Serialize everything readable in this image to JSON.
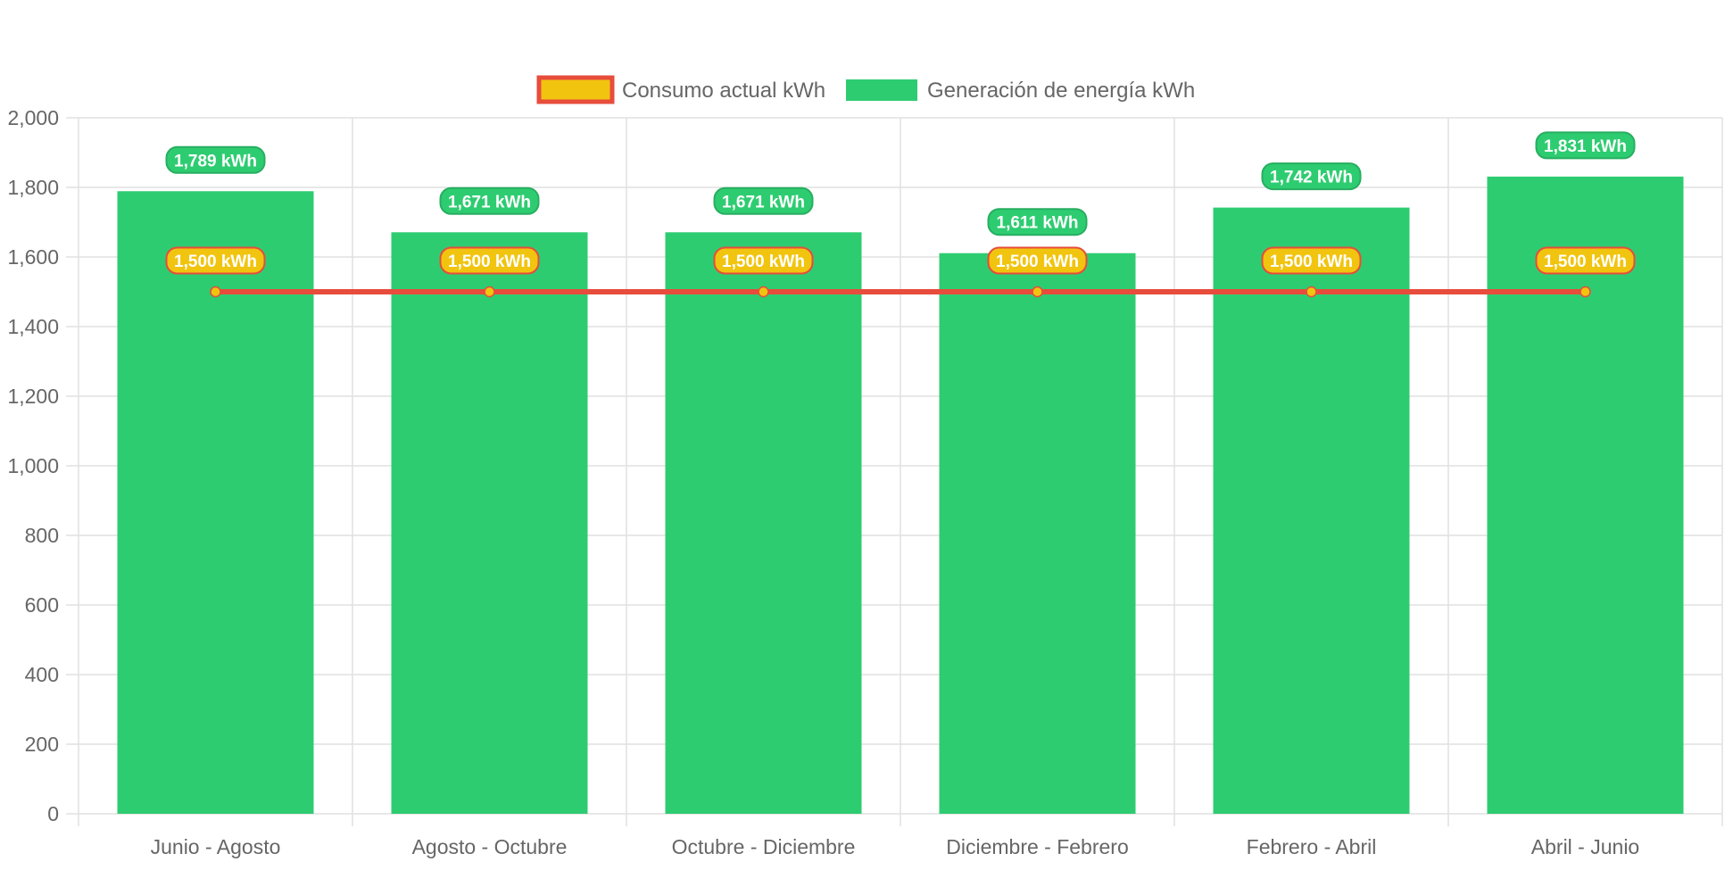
{
  "chart_data": {
    "type": "bar",
    "categories": [
      "Junio - Agosto",
      "Agosto - Octubre",
      "Octubre - Diciembre",
      "Diciembre - Febrero",
      "Febrero - Abril",
      "Abril - Junio"
    ],
    "series": [
      {
        "name": "Consumo actual kWh",
        "type": "line",
        "values": [
          1500,
          1500,
          1500,
          1500,
          1500,
          1500
        ],
        "data_labels": [
          "1,500 kWh",
          "1,500 kWh",
          "1,500 kWh",
          "1,500 kWh",
          "1,500 kWh",
          "1,500 kWh"
        ],
        "line_color": "#e74c3c",
        "point_color": "#f1c40f",
        "label_color": "#f1c40f",
        "label_border_color": "#e74c3c"
      },
      {
        "name": "Generación de energía kWh",
        "type": "bar",
        "values": [
          1789,
          1671,
          1671,
          1611,
          1742,
          1831
        ],
        "data_labels": [
          "1,789 kWh",
          "1,671 kWh",
          "1,671 kWh",
          "1,611 kWh",
          "1,742 kWh",
          "1,831 kWh"
        ],
        "color": "#2ecc71",
        "label_color": "#2ecc71",
        "label_border_color": "#27ae60"
      }
    ],
    "y_ticks": [
      "0",
      "200",
      "400",
      "600",
      "800",
      "1,000",
      "1,200",
      "1,400",
      "1,600",
      "1,800",
      "2,000"
    ],
    "ylim": [
      0,
      2000
    ],
    "grid": true,
    "legend_position": "top"
  }
}
